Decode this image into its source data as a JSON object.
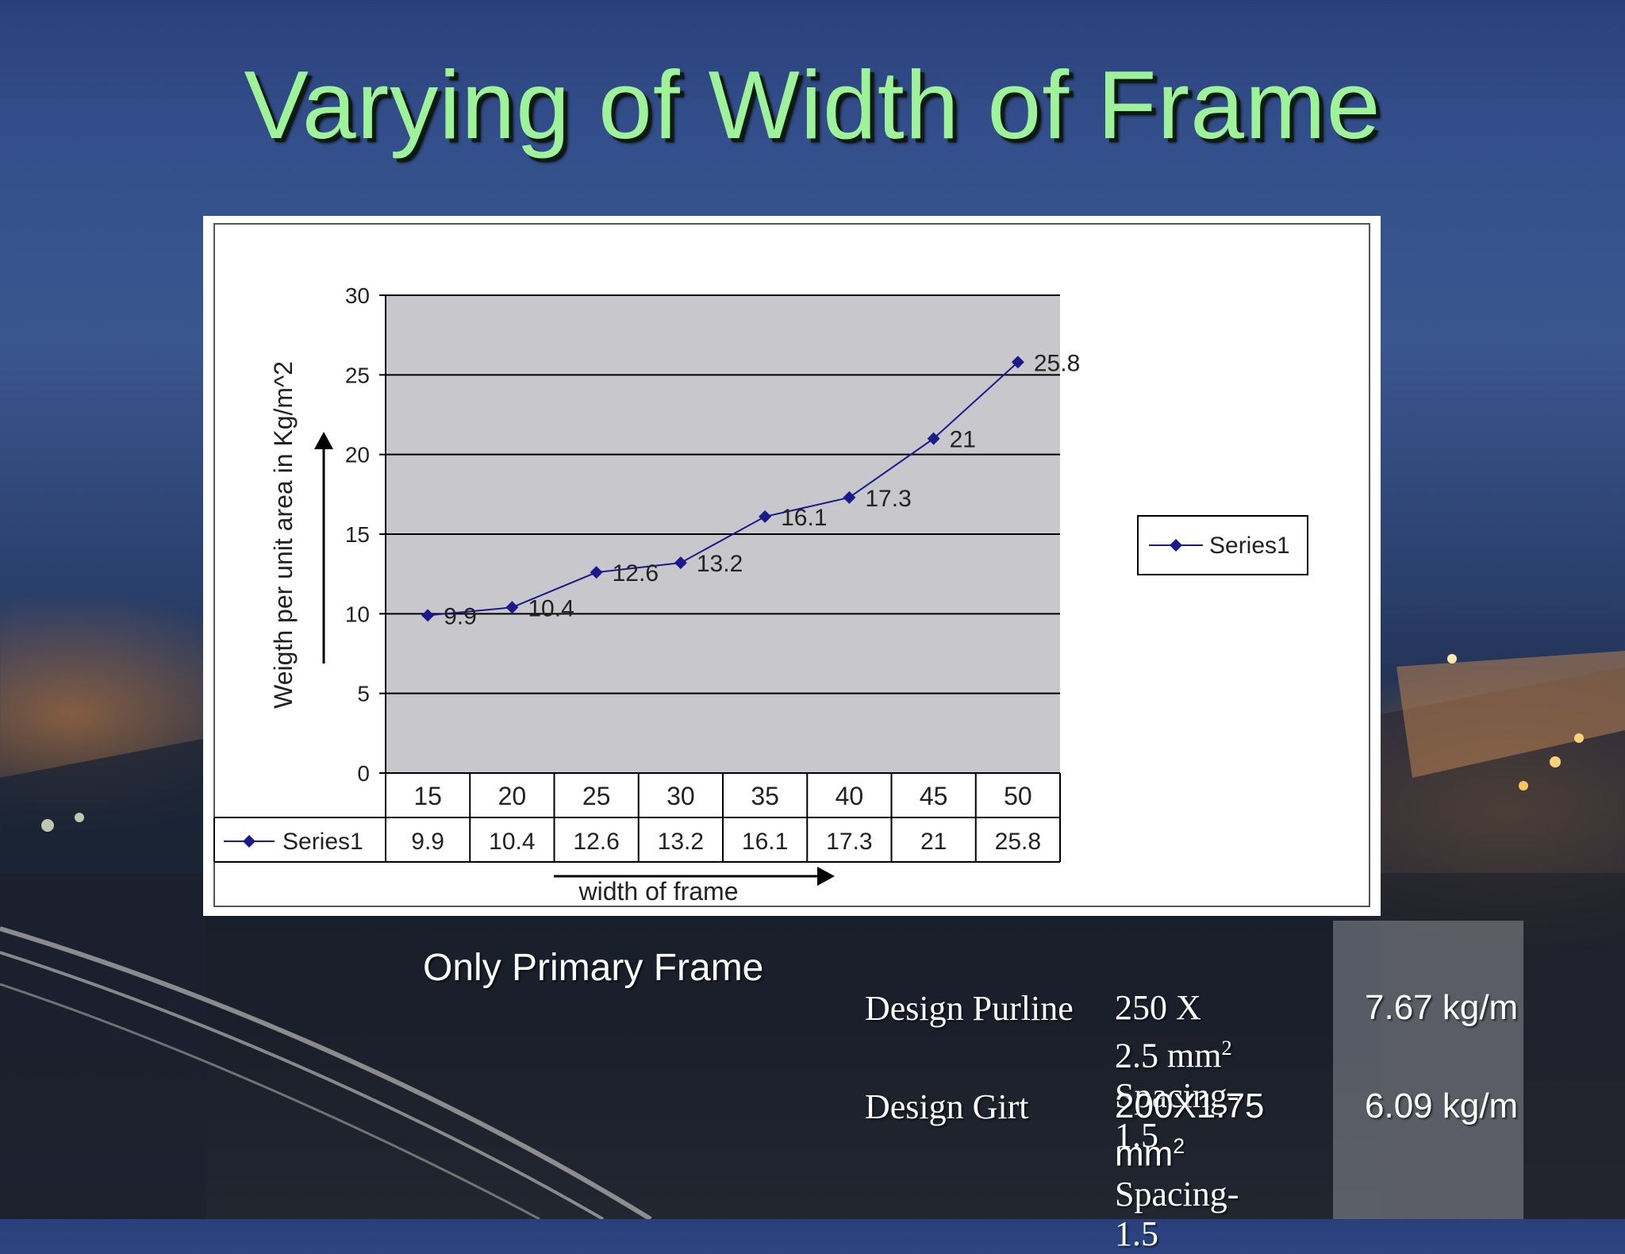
{
  "slide": {
    "title": "Varying of Width of Frame",
    "caption": "Only Primary Frame"
  },
  "chart_data": {
    "type": "line",
    "categories": [
      "15",
      "20",
      "25",
      "30",
      "35",
      "40",
      "45",
      "50"
    ],
    "series": [
      {
        "name": "Series1",
        "values": [
          9.9,
          10.4,
          12.6,
          13.2,
          16.1,
          17.3,
          21,
          25.8
        ]
      }
    ],
    "data_labels": [
      "9.9",
      "10.4",
      "12.6",
      "13.2",
      "16.1",
      "17.3",
      "21",
      "25.8"
    ],
    "ylabel": "Weigth per unit area in Kg/m^2",
    "xlabel": "width of frame",
    "ylim": [
      0,
      30
    ],
    "yticks": [
      "0",
      "5",
      "10",
      "15",
      "20",
      "25",
      "30"
    ],
    "grid": true,
    "legend": "right",
    "data_table": true,
    "colors": {
      "series": "#1a1a8c",
      "plot_area": "#c8c8cc",
      "gridline": "#000000"
    }
  },
  "specs": {
    "rows": [
      {
        "name": "Design Purline",
        "size": "250 X 2.5 mm",
        "size_sup": "2",
        "spacing": "Spacing-1.5",
        "weight": "7.67 kg/m"
      },
      {
        "name": "Design Girt",
        "size": "200X1.75 mm",
        "size_sup": "2",
        "spacing": "Spacing-1.5",
        "weight": "6.09 kg/m"
      }
    ]
  }
}
